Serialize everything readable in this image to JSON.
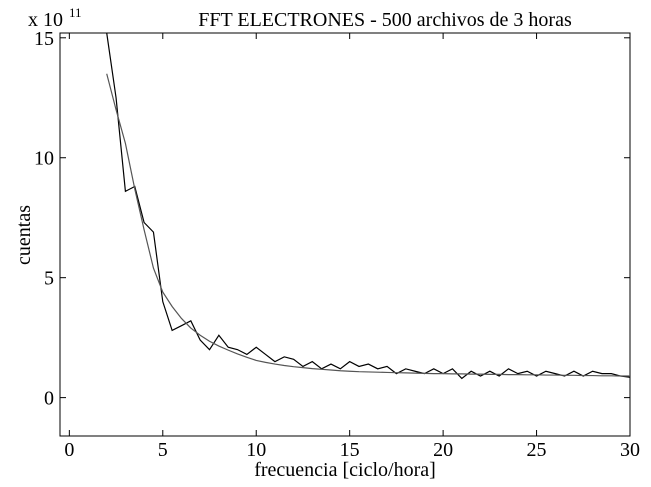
{
  "chart_data": {
    "type": "line",
    "title": "FFT  ELECTRONES - 500 archivos de 3 horas",
    "y_multiplier": {
      "base": "x 10",
      "exponent": "11"
    },
    "xlabel": "frecuencia  [ciclo/hora]",
    "ylabel": "cuentas",
    "xlim": [
      -0.5,
      30
    ],
    "ylim": [
      -1.6,
      15.2
    ],
    "xticks": [
      0,
      5,
      10,
      15,
      20,
      25,
      30
    ],
    "yticks": [
      0,
      5,
      10,
      15
    ],
    "x": [
      2,
      2.5,
      3,
      3.5,
      4,
      4.5,
      5,
      5.5,
      6,
      6.5,
      7,
      7.5,
      8,
      8.5,
      9,
      9.5,
      10,
      10.5,
      11,
      11.5,
      12,
      12.5,
      13,
      13.5,
      14,
      14.5,
      15,
      15.5,
      16,
      16.5,
      17,
      17.5,
      18,
      18.5,
      19,
      19.5,
      20,
      20.5,
      21,
      21.5,
      22,
      22.5,
      23,
      23.5,
      24,
      24.5,
      25,
      25.5,
      26,
      26.5,
      27,
      27.5,
      28,
      28.5,
      29,
      29.5,
      30
    ],
    "series": [
      {
        "color": "#000000",
        "values": [
          15.2,
          12.5,
          8.6,
          8.8,
          7.3,
          6.9,
          4.0,
          2.8,
          3.0,
          3.2,
          2.4,
          2.0,
          2.6,
          2.1,
          2.0,
          1.8,
          2.1,
          1.8,
          1.5,
          1.7,
          1.6,
          1.3,
          1.5,
          1.2,
          1.4,
          1.2,
          1.5,
          1.3,
          1.4,
          1.2,
          1.3,
          1.0,
          1.2,
          1.1,
          1.0,
          1.2,
          1.0,
          1.2,
          0.8,
          1.1,
          0.9,
          1.1,
          0.9,
          1.2,
          1.0,
          1.1,
          0.9,
          1.1,
          1.0,
          0.9,
          1.1,
          0.9,
          1.1,
          1.0,
          1.0,
          0.9,
          0.85
        ]
      },
      {
        "color": "#555555",
        "values": [
          13.5,
          12.0,
          10.6,
          8.7,
          7.0,
          5.4,
          4.4,
          3.8,
          3.3,
          2.9,
          2.6,
          2.35,
          2.15,
          1.98,
          1.82,
          1.68,
          1.55,
          1.47,
          1.4,
          1.34,
          1.29,
          1.25,
          1.21,
          1.18,
          1.15,
          1.12,
          1.1,
          1.08,
          1.07,
          1.06,
          1.05,
          1.04,
          1.03,
          1.02,
          1.01,
          1.0,
          1.0,
          0.99,
          0.99,
          0.98,
          0.98,
          0.97,
          0.97,
          0.96,
          0.96,
          0.95,
          0.95,
          0.94,
          0.94,
          0.93,
          0.93,
          0.92,
          0.92,
          0.91,
          0.91,
          0.9,
          0.9
        ]
      }
    ]
  }
}
